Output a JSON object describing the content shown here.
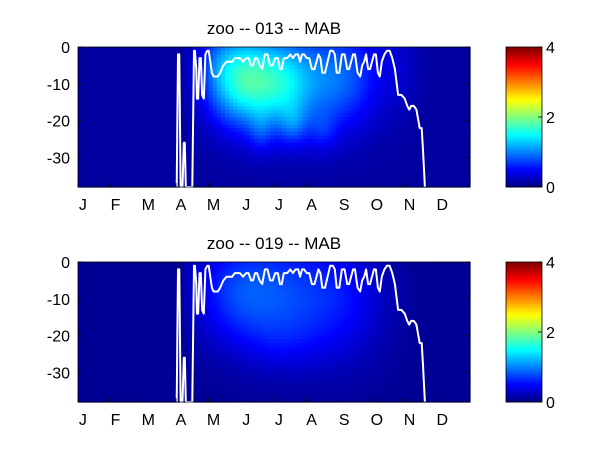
{
  "chart_data": [
    {
      "type": "heatmap",
      "title": "zoo -- 013 -- MAB",
      "xlabel": "",
      "ylabel": "",
      "x_tick_labels": [
        "J",
        "F",
        "M",
        "A",
        "M",
        "J",
        "J",
        "A",
        "S",
        "O",
        "N",
        "D"
      ],
      "y_ticks": [
        0,
        -10,
        -20,
        -30
      ],
      "y_tick_labels": [
        "0",
        "-10",
        "-20",
        "-30"
      ],
      "ylim": [
        -38,
        0
      ],
      "xlim_months": [
        0,
        12
      ],
      "colorbar": {
        "range": [
          0,
          4
        ],
        "ticks": [
          0,
          2,
          4
        ],
        "tick_labels": [
          "0",
          "2",
          "4"
        ],
        "colormap": "jet"
      },
      "field": {
        "base": 0.12,
        "mask_start_month": 3.2,
        "mask_end_month": 11.0,
        "blobs": [
          {
            "month": 4.2,
            "depth": -3,
            "amp": 0.15,
            "sx": 0.35,
            "sz": 8
          },
          {
            "month": 4.8,
            "depth": -8,
            "amp": 1.05,
            "sx": 0.7,
            "sz": 9
          },
          {
            "month": 5.5,
            "depth": -10,
            "amp": 0.75,
            "sx": 0.7,
            "sz": 9
          },
          {
            "month": 6.3,
            "depth": -10,
            "amp": 0.7,
            "sx": 0.6,
            "sz": 9
          },
          {
            "month": 7.3,
            "depth": -9,
            "amp": 0.65,
            "sx": 0.8,
            "sz": 10
          },
          {
            "month": 8.4,
            "depth": -8,
            "amp": 0.45,
            "sx": 0.7,
            "sz": 10
          },
          {
            "month": 6.6,
            "depth": -21,
            "amp": 0.35,
            "sx": 0.3,
            "sz": 4
          },
          {
            "month": 5.6,
            "depth": -23,
            "amp": 0.25,
            "sx": 0.25,
            "sz": 4
          },
          {
            "month": 7.5,
            "depth": -23,
            "amp": 0.25,
            "sx": 0.3,
            "sz": 4
          },
          {
            "month": 9.8,
            "depth": -5,
            "amp": 0.15,
            "sx": 0.5,
            "sz": 10
          }
        ]
      },
      "isoline": {
        "month": [
          3.02,
          3.06,
          3.1,
          3.14,
          3.2,
          3.24,
          3.27,
          3.3,
          3.5,
          3.55,
          3.58,
          3.62,
          3.64,
          3.68,
          3.72,
          3.76,
          3.8,
          3.85,
          3.9,
          3.96,
          4.0,
          4.05,
          4.1,
          4.15,
          4.2,
          4.28,
          4.35,
          4.45,
          4.55,
          4.62,
          4.72,
          4.8,
          4.88,
          4.96,
          5.05,
          5.15,
          5.22,
          5.3,
          5.36,
          5.42,
          5.48,
          5.56,
          5.64,
          5.72,
          5.8,
          5.88,
          5.96,
          6.04,
          6.12,
          6.18,
          6.24,
          6.3,
          6.4,
          6.5,
          6.58,
          6.66,
          6.74,
          6.8,
          6.86,
          6.92,
          7.0,
          7.08,
          7.16,
          7.24,
          7.3,
          7.36,
          7.42,
          7.48,
          7.56,
          7.64,
          7.72,
          7.8,
          7.86,
          7.92,
          8.0,
          8.08,
          8.16,
          8.24,
          8.3,
          8.36,
          8.42,
          8.48,
          8.56,
          8.64,
          8.7,
          8.76,
          8.82,
          8.88,
          8.94,
          9.0,
          9.06,
          9.12,
          9.18,
          9.24,
          9.3,
          9.38,
          9.46,
          9.54,
          9.62,
          9.7,
          9.8,
          9.9,
          10.0,
          10.08,
          10.14,
          10.2,
          10.28,
          10.36,
          10.42,
          10.46,
          10.52,
          10.56,
          10.62
        ],
        "depth": [
          -38,
          -2,
          -2,
          -38,
          -38,
          -26,
          -26,
          -38,
          -38,
          -1,
          -1,
          -6,
          -14,
          -14,
          -3,
          -3,
          -13,
          -14,
          -2,
          -1,
          -1,
          -4,
          -7,
          -8,
          -8,
          -8,
          -7,
          -5,
          -4,
          -4,
          -4,
          -3,
          -3,
          -3,
          -4,
          -3,
          -3,
          -5,
          -5,
          -3,
          -3,
          -5,
          -6,
          -2,
          -2,
          -5,
          -5,
          -3,
          -3,
          -6,
          -6,
          -3,
          -3,
          -2,
          -3,
          -2,
          -2,
          -4,
          -2,
          -2,
          -3,
          -3,
          -6,
          -6,
          -4,
          -2,
          -3,
          -7,
          -7,
          -4,
          -1,
          -1,
          -2,
          -7,
          -7,
          -2,
          -2,
          -6,
          -6,
          -4,
          -2,
          -2,
          -7,
          -8,
          -5,
          -4,
          -2,
          -6,
          -6,
          -4,
          -2,
          -2,
          -7,
          -8,
          -4,
          -2,
          -1,
          -1,
          -3,
          -6,
          -13,
          -13,
          -14,
          -16,
          -17,
          -16,
          -16,
          -17,
          -20,
          -22,
          -22,
          -28,
          -38
        ]
      }
    },
    {
      "type": "heatmap",
      "title": "zoo -- 019 -- MAB",
      "xlabel": "",
      "ylabel": "",
      "x_tick_labels": [
        "J",
        "F",
        "M",
        "A",
        "M",
        "J",
        "J",
        "A",
        "S",
        "O",
        "N",
        "D"
      ],
      "y_ticks": [
        0,
        -10,
        -20,
        -30
      ],
      "y_tick_labels": [
        "0",
        "-10",
        "-20",
        "-30"
      ],
      "ylim": [
        -38,
        0
      ],
      "xlim_months": [
        0,
        12
      ],
      "colorbar": {
        "range": [
          0,
          4
        ],
        "ticks": [
          0,
          2,
          4
        ],
        "tick_labels": [
          "0",
          "2",
          "4"
        ],
        "colormap": "jet"
      },
      "field": {
        "base": 0.08,
        "mask_start_month": 3.3,
        "mask_end_month": 10.8,
        "blobs": [
          {
            "month": 4.7,
            "depth": -8,
            "amp": 0.45,
            "sx": 0.9,
            "sz": 10
          },
          {
            "month": 5.8,
            "depth": -9,
            "amp": 0.4,
            "sx": 1.0,
            "sz": 11
          },
          {
            "month": 7.0,
            "depth": -10,
            "amp": 0.35,
            "sx": 1.0,
            "sz": 12
          },
          {
            "month": 8.3,
            "depth": -10,
            "amp": 0.3,
            "sx": 0.9,
            "sz": 12
          },
          {
            "month": 6.2,
            "depth": -22,
            "amp": 0.12,
            "sx": 0.8,
            "sz": 5
          }
        ]
      },
      "isoline": {
        "month": [
          3.02,
          3.06,
          3.1,
          3.14,
          3.2,
          3.24,
          3.27,
          3.3,
          3.5,
          3.55,
          3.58,
          3.62,
          3.64,
          3.68,
          3.72,
          3.76,
          3.8,
          3.85,
          3.9,
          3.96,
          4.0,
          4.05,
          4.1,
          4.15,
          4.2,
          4.28,
          4.35,
          4.45,
          4.55,
          4.62,
          4.72,
          4.8,
          4.88,
          4.96,
          5.05,
          5.15,
          5.22,
          5.3,
          5.36,
          5.42,
          5.48,
          5.56,
          5.64,
          5.72,
          5.8,
          5.88,
          5.96,
          6.04,
          6.12,
          6.18,
          6.24,
          6.3,
          6.4,
          6.5,
          6.58,
          6.66,
          6.74,
          6.8,
          6.86,
          6.92,
          7.0,
          7.08,
          7.16,
          7.24,
          7.3,
          7.36,
          7.42,
          7.48,
          7.56,
          7.64,
          7.72,
          7.8,
          7.86,
          7.92,
          8.0,
          8.08,
          8.16,
          8.24,
          8.3,
          8.36,
          8.42,
          8.48,
          8.56,
          8.64,
          8.7,
          8.76,
          8.82,
          8.88,
          8.94,
          9.0,
          9.06,
          9.12,
          9.18,
          9.24,
          9.3,
          9.38,
          9.46,
          9.54,
          9.62,
          9.7,
          9.8,
          9.9,
          10.0,
          10.08,
          10.14,
          10.2,
          10.28,
          10.36,
          10.42,
          10.46,
          10.52,
          10.56,
          10.62
        ],
        "depth": [
          -38,
          -2,
          -2,
          -38,
          -38,
          -26,
          -26,
          -38,
          -38,
          -1,
          -1,
          -6,
          -14,
          -14,
          -3,
          -3,
          -13,
          -14,
          -2,
          -1,
          -1,
          -4,
          -7,
          -8,
          -8,
          -8,
          -7,
          -5,
          -4,
          -4,
          -4,
          -3,
          -3,
          -3,
          -4,
          -3,
          -3,
          -5,
          -5,
          -3,
          -3,
          -5,
          -6,
          -2,
          -2,
          -5,
          -5,
          -3,
          -3,
          -6,
          -6,
          -3,
          -3,
          -2,
          -3,
          -2,
          -2,
          -4,
          -2,
          -2,
          -3,
          -3,
          -6,
          -6,
          -4,
          -2,
          -3,
          -7,
          -7,
          -4,
          -1,
          -1,
          -2,
          -7,
          -7,
          -2,
          -2,
          -6,
          -6,
          -4,
          -2,
          -2,
          -7,
          -8,
          -5,
          -4,
          -2,
          -6,
          -6,
          -4,
          -2,
          -2,
          -7,
          -8,
          -4,
          -2,
          -1,
          -1,
          -3,
          -6,
          -13,
          -13,
          -14,
          -16,
          -17,
          -16,
          -16,
          -17,
          -20,
          -22,
          -22,
          -28,
          -38
        ]
      }
    }
  ]
}
